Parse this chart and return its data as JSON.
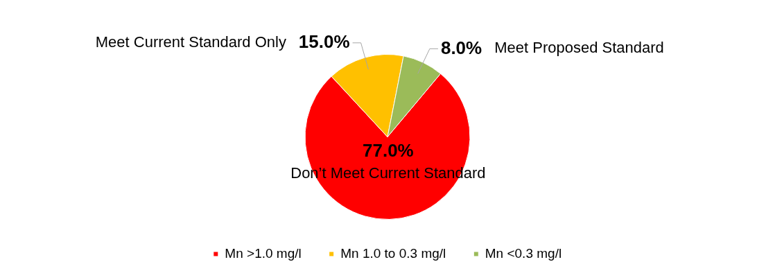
{
  "chart_data": {
    "type": "pie",
    "categories": [
      "Mn >1.0 mg/l",
      "Mn 1.0 to 0.3 mg/l",
      "Mn <0.3 mg/l"
    ],
    "values": [
      77,
      15,
      8
    ],
    "colors": [
      "#ff0000",
      "#ffc000",
      "#9bbb59"
    ],
    "value_labels": [
      "77.0%",
      "15.0%",
      "8.0%"
    ],
    "annotations": [
      "Don’t Meet Current Standard",
      "Meet Current Standard Only",
      "Meet Proposed Standard"
    ],
    "legend": "bottom"
  }
}
